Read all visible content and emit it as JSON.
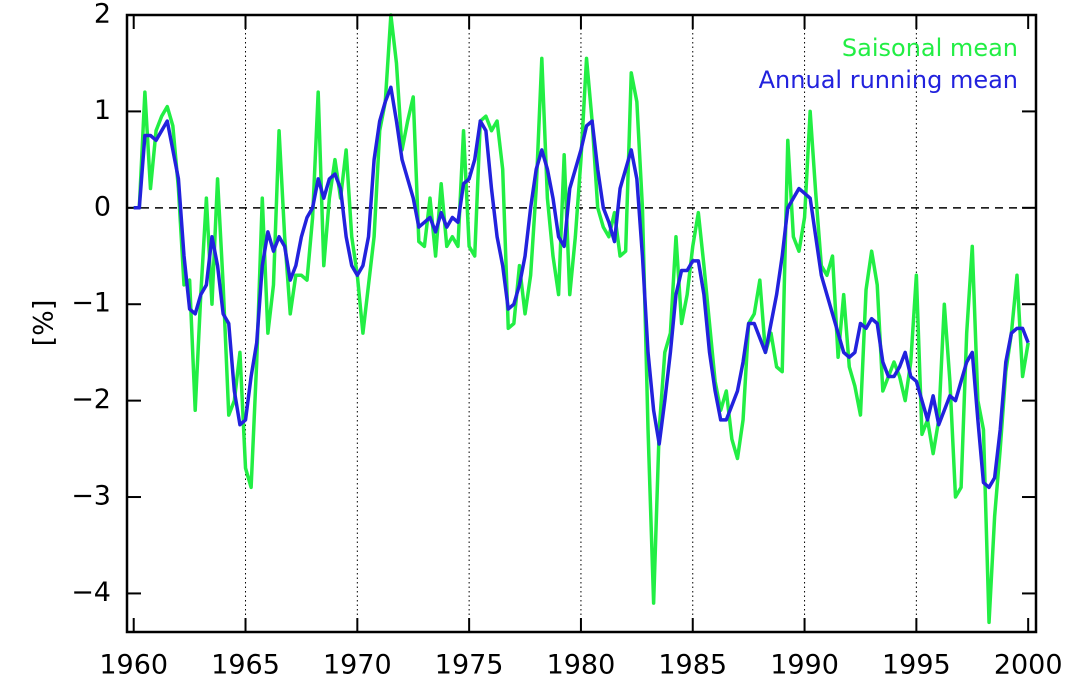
{
  "chart_data": {
    "type": "line",
    "y_label": "[%]",
    "x": [
      1960,
      1960.25,
      1960.5,
      1960.75,
      1961,
      1961.25,
      1961.5,
      1961.75,
      1962,
      1962.25,
      1962.5,
      1962.75,
      1963,
      1963.25,
      1963.5,
      1963.75,
      1964,
      1964.25,
      1964.5,
      1964.75,
      1965,
      1965.25,
      1965.5,
      1965.75,
      1966,
      1966.25,
      1966.5,
      1966.75,
      1967,
      1967.25,
      1967.5,
      1967.75,
      1968,
      1968.25,
      1968.5,
      1968.75,
      1969,
      1969.25,
      1969.5,
      1969.75,
      1970,
      1970.25,
      1970.5,
      1970.75,
      1971,
      1971.25,
      1971.5,
      1971.75,
      1972,
      1972.25,
      1972.5,
      1972.75,
      1973,
      1973.25,
      1973.5,
      1973.75,
      1974,
      1974.25,
      1974.5,
      1974.75,
      1975,
      1975.25,
      1975.5,
      1975.75,
      1976,
      1976.25,
      1976.5,
      1976.75,
      1977,
      1977.25,
      1977.5,
      1977.75,
      1978,
      1978.25,
      1978.5,
      1978.75,
      1979,
      1979.25,
      1979.5,
      1979.75,
      1980,
      1980.25,
      1980.5,
      1980.75,
      1981,
      1981.25,
      1981.5,
      1981.75,
      1982,
      1982.25,
      1982.5,
      1982.75,
      1983,
      1983.25,
      1983.5,
      1983.75,
      1984,
      1984.25,
      1984.5,
      1984.75,
      1985,
      1985.25,
      1985.5,
      1985.75,
      1986,
      1986.25,
      1986.5,
      1986.75,
      1987,
      1987.25,
      1987.5,
      1987.75,
      1988,
      1988.25,
      1988.5,
      1988.75,
      1989,
      1989.25,
      1989.5,
      1989.75,
      1990,
      1990.25,
      1990.5,
      1990.75,
      1991,
      1991.25,
      1991.5,
      1991.75,
      1992,
      1992.25,
      1992.5,
      1992.75,
      1993,
      1993.25,
      1993.5,
      1993.75,
      1994,
      1994.25,
      1994.5,
      1994.75,
      1995,
      1995.25,
      1995.5,
      1995.75,
      1996,
      1996.25,
      1996.5,
      1996.75,
      1997,
      1997.25,
      1997.5,
      1997.75,
      1998,
      1998.25,
      1998.5,
      1998.75,
      1999,
      1999.25,
      1999.5,
      1999.75,
      2000
    ],
    "series": [
      {
        "name": "Saisonal mean",
        "color": "#22ee44",
        "values": [
          0,
          0,
          1.2,
          0.2,
          0.8,
          0.95,
          1.05,
          0.85,
          0.2,
          -0.8,
          -0.75,
          -2.1,
          -0.9,
          0.1,
          -1.0,
          0.3,
          -0.8,
          -2.15,
          -2.0,
          -1.5,
          -2.7,
          -2.9,
          -1.6,
          0.1,
          -1.3,
          -0.8,
          0.8,
          -0.3,
          -1.1,
          -0.7,
          -0.7,
          -0.75,
          -0.1,
          1.2,
          -0.6,
          0.1,
          0.5,
          0.1,
          0.6,
          -0.3,
          -0.7,
          -1.3,
          -0.8,
          -0.3,
          0.8,
          1.1,
          2.0,
          1.5,
          0.6,
          0.9,
          1.15,
          -0.35,
          -0.4,
          0.1,
          -0.5,
          0.25,
          -0.4,
          -0.3,
          -0.4,
          0.8,
          -0.4,
          -0.5,
          0.9,
          0.95,
          0.8,
          0.9,
          0.4,
          -1.25,
          -1.2,
          -0.6,
          -1.1,
          -0.7,
          0.2,
          1.55,
          0.1,
          -0.5,
          -0.9,
          0.55,
          -0.9,
          -0.3,
          0.5,
          1.55,
          0.9,
          0.0,
          -0.2,
          -0.3,
          -0.05,
          -0.5,
          -0.45,
          1.4,
          1.1,
          0.0,
          -2.3,
          -4.1,
          -2.3,
          -1.5,
          -1.3,
          -0.3,
          -1.2,
          -0.9,
          -0.4,
          -0.05,
          -0.6,
          -1.2,
          -1.8,
          -2.1,
          -1.9,
          -2.4,
          -2.6,
          -2.2,
          -1.2,
          -1.1,
          -0.75,
          -1.5,
          -1.3,
          -1.65,
          -1.7,
          0.7,
          -0.3,
          -0.45,
          -0.1,
          1.0,
          0.15,
          -0.6,
          -0.7,
          -0.5,
          -1.55,
          -0.9,
          -1.65,
          -1.85,
          -2.15,
          -0.85,
          -0.45,
          -0.8,
          -1.9,
          -1.75,
          -1.6,
          -1.75,
          -2.0,
          -1.6,
          -0.7,
          -2.35,
          -2.2,
          -2.55,
          -2.2,
          -1.0,
          -1.8,
          -3.0,
          -2.9,
          -1.3,
          -0.4,
          -2.0,
          -2.3,
          -4.3,
          -3.2,
          -2.5,
          -1.7,
          -1.3,
          -0.7,
          -1.75,
          -1.4
        ]
      },
      {
        "name": "Annual running mean",
        "color": "#2222dd",
        "values": [
          0,
          0,
          0.75,
          0.75,
          0.7,
          0.8,
          0.9,
          0.6,
          0.3,
          -0.5,
          -1.05,
          -1.1,
          -0.9,
          -0.8,
          -0.3,
          -0.6,
          -1.1,
          -1.2,
          -1.9,
          -2.25,
          -2.2,
          -1.75,
          -1.4,
          -0.6,
          -0.25,
          -0.45,
          -0.3,
          -0.4,
          -0.75,
          -0.6,
          -0.3,
          -0.1,
          0.0,
          0.3,
          0.1,
          0.3,
          0.35,
          0.2,
          -0.3,
          -0.6,
          -0.7,
          -0.6,
          -0.3,
          0.5,
          0.9,
          1.1,
          1.25,
          0.9,
          0.5,
          0.3,
          0.1,
          -0.2,
          -0.15,
          -0.1,
          -0.25,
          -0.05,
          -0.2,
          -0.1,
          -0.15,
          0.25,
          0.3,
          0.5,
          0.9,
          0.8,
          0.2,
          -0.3,
          -0.6,
          -1.05,
          -1.0,
          -0.8,
          -0.5,
          0.0,
          0.4,
          0.6,
          0.4,
          0.1,
          -0.3,
          -0.4,
          0.2,
          0.4,
          0.6,
          0.85,
          0.9,
          0.4,
          0.0,
          -0.15,
          -0.35,
          0.2,
          0.4,
          0.6,
          0.3,
          -0.5,
          -1.5,
          -2.1,
          -2.45,
          -2.0,
          -1.5,
          -0.9,
          -0.65,
          -0.65,
          -0.55,
          -0.55,
          -0.9,
          -1.5,
          -1.9,
          -2.2,
          -2.2,
          -2.05,
          -1.9,
          -1.6,
          -1.2,
          -1.2,
          -1.35,
          -1.5,
          -1.2,
          -0.9,
          -0.5,
          0.0,
          0.1,
          0.2,
          0.15,
          0.1,
          -0.3,
          -0.7,
          -0.9,
          -1.1,
          -1.3,
          -1.5,
          -1.55,
          -1.5,
          -1.2,
          -1.25,
          -1.15,
          -1.2,
          -1.6,
          -1.75,
          -1.75,
          -1.65,
          -1.5,
          -1.75,
          -1.8,
          -2.0,
          -2.2,
          -1.95,
          -2.25,
          -2.1,
          -1.95,
          -2.0,
          -1.8,
          -1.6,
          -1.5,
          -2.2,
          -2.85,
          -2.9,
          -2.8,
          -2.3,
          -1.6,
          -1.3,
          -1.25,
          -1.25,
          -1.4
        ]
      }
    ],
    "xlim": [
      1959.7,
      2000.35
    ],
    "ylim": [
      -4.4,
      2
    ],
    "xticks": [
      1960,
      1965,
      1970,
      1975,
      1980,
      1985,
      1990,
      1995,
      2000
    ],
    "yticks": [
      {
        "value": -4,
        "label": "−4"
      },
      {
        "value": -3,
        "label": "−3"
      },
      {
        "value": -2,
        "label": "−2"
      },
      {
        "value": -1,
        "label": "−1"
      },
      0,
      1,
      2
    ],
    "xgrid": true,
    "zero_line": true,
    "legend": "upper right"
  }
}
